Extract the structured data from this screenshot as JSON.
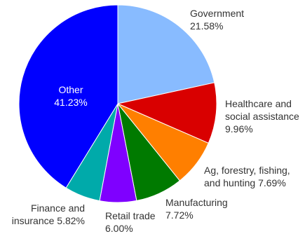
{
  "chart_data": {
    "type": "pie",
    "title": "",
    "start_angle_deg": 0,
    "direction": "clockwise",
    "series": [
      {
        "values": [
          {
            "category": "Government",
            "value": 21.58,
            "color": "#88bbff",
            "label_lines": [
              "Government",
              "21.58%"
            ],
            "label_position": "outside-right"
          },
          {
            "category": "Healthcare and social assistance",
            "value": 9.96,
            "color": "#d90000",
            "label_lines": [
              "Healthcare and",
              "social assistance",
              "9.96%"
            ],
            "label_position": "outside-right"
          },
          {
            "category": "Ag, forestry, fishing, and hunting",
            "value": 7.69,
            "color": "#ff7f00",
            "label_lines": [
              "Ag, forestry, fishing,",
              "and hunting 7.69%"
            ],
            "label_position": "outside-right"
          },
          {
            "category": "Manufacturing",
            "value": 7.72,
            "color": "#007a00",
            "label_lines": [
              "Manufacturing",
              "7.72%"
            ],
            "label_position": "outside-below"
          },
          {
            "category": "Retail trade",
            "value": 6.0,
            "color": "#7f00ff",
            "label_lines": [
              "Retail trade",
              "6.00%"
            ],
            "label_position": "outside-below"
          },
          {
            "category": "Finance and insurance",
            "value": 5.82,
            "color": "#00aaaa",
            "label_lines": [
              "Finance and",
              "insurance 5.82%"
            ],
            "label_position": "outside-left"
          },
          {
            "category": "Other",
            "value": 41.23,
            "color": "#0000ff",
            "label_lines": [
              "Other",
              "41.23%"
            ],
            "label_position": "inside"
          }
        ]
      }
    ]
  }
}
